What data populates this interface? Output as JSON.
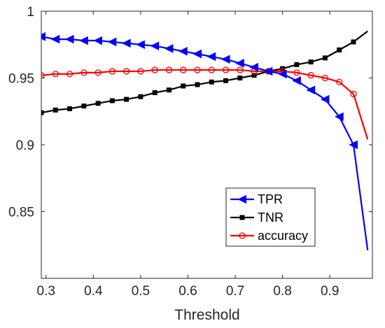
{
  "chart_data": {
    "type": "line",
    "title": "",
    "xlabel": "Threshold",
    "ylabel": "",
    "xlim": [
      0.29,
      0.99
    ],
    "ylim": [
      0.8,
      1.0
    ],
    "xticks": [
      "0.3",
      "0.4",
      "0.5",
      "0.6",
      "0.7",
      "0.8",
      "0.9"
    ],
    "yticks": [
      "1",
      "0.95",
      "0.9",
      "0.85"
    ],
    "grid": false,
    "legend_position": "bottom-right",
    "x": [
      0.29,
      0.32,
      0.35,
      0.38,
      0.41,
      0.44,
      0.47,
      0.5,
      0.53,
      0.56,
      0.59,
      0.62,
      0.65,
      0.68,
      0.71,
      0.74,
      0.77,
      0.8,
      0.83,
      0.86,
      0.89,
      0.92,
      0.95,
      0.98
    ],
    "series": [
      {
        "name": "TPR",
        "color": "#0000ff",
        "marker": "triangle-left",
        "values": [
          0.981,
          0.979,
          0.979,
          0.978,
          0.978,
          0.977,
          0.976,
          0.975,
          0.974,
          0.972,
          0.97,
          0.968,
          0.966,
          0.964,
          0.961,
          0.958,
          0.955,
          0.953,
          0.948,
          0.941,
          0.934,
          0.921,
          0.9,
          0.821
        ],
        "marker_count": 23
      },
      {
        "name": "TNR",
        "color": "#000000",
        "marker": "square",
        "values": [
          0.924,
          0.926,
          0.927,
          0.929,
          0.931,
          0.933,
          0.934,
          0.936,
          0.939,
          0.941,
          0.944,
          0.945,
          0.947,
          0.948,
          0.95,
          0.952,
          0.955,
          0.957,
          0.96,
          0.962,
          0.965,
          0.971,
          0.977,
          0.985
        ],
        "marker_count": 23
      },
      {
        "name": "accuracy",
        "color": "#ff0000",
        "marker": "circle",
        "values": [
          0.952,
          0.953,
          0.953,
          0.954,
          0.954,
          0.955,
          0.955,
          0.955,
          0.956,
          0.956,
          0.956,
          0.956,
          0.956,
          0.956,
          0.956,
          0.955,
          0.955,
          0.955,
          0.954,
          0.952,
          0.95,
          0.947,
          0.938,
          0.904
        ],
        "marker_count": 23
      }
    ]
  }
}
